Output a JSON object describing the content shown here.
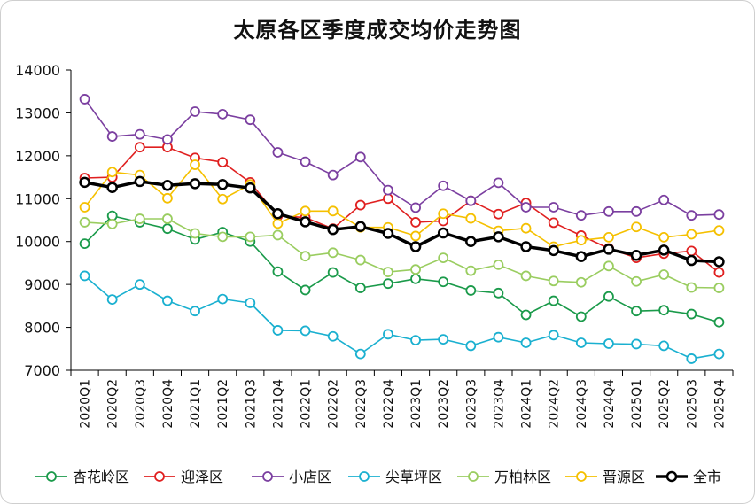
{
  "chart_data": {
    "type": "line",
    "title": "太原各区季度成交均价走势图",
    "xlabel": "",
    "ylabel": "",
    "ylim": [
      7000,
      14000
    ],
    "yticks": [
      7000,
      8000,
      9000,
      10000,
      11000,
      12000,
      13000,
      14000
    ],
    "grid": false,
    "legend_position": "bottom",
    "categories": [
      "2020Q1",
      "2020Q2",
      "2020Q3",
      "2020Q4",
      "2021Q1",
      "2021Q2",
      "2021Q3",
      "2021Q4",
      "2022Q1",
      "2022Q2",
      "2022Q3",
      "2022Q4",
      "2023Q1",
      "2023Q2",
      "2023Q3",
      "2023Q4",
      "2024Q1",
      "2024Q2",
      "2024Q3",
      "2024Q4",
      "2025Q1",
      "2025Q2",
      "2025Q3",
      "2025Q4"
    ],
    "series": [
      {
        "name": "杏花岭区",
        "color": "#1a9a4a",
        "values": [
          9950,
          10600,
          10450,
          10300,
          10050,
          10220,
          10000,
          9300,
          8870,
          9280,
          8920,
          9020,
          9130,
          9060,
          8860,
          8800,
          8290,
          8620,
          8250,
          8720,
          8380,
          8400,
          8310,
          8120
        ]
      },
      {
        "name": "迎泽区",
        "color": "#e02020",
        "values": [
          11480,
          11500,
          12200,
          12200,
          11950,
          11850,
          11380,
          10600,
          10560,
          10300,
          10850,
          11000,
          10450,
          10480,
          10950,
          10640,
          10900,
          10440,
          10140,
          9840,
          9620,
          9720,
          9780,
          9280
        ]
      },
      {
        "name": "小店区",
        "color": "#7b3fa0",
        "values": [
          13320,
          12450,
          12500,
          12380,
          13030,
          12970,
          12840,
          12080,
          11860,
          11550,
          11970,
          11200,
          10790,
          11300,
          10950,
          11370,
          10800,
          10800,
          10610,
          10700,
          10700,
          10970,
          10610,
          10630
        ]
      },
      {
        "name": "尖草坪区",
        "color": "#1ab0d0",
        "values": [
          9200,
          8650,
          9000,
          8620,
          8380,
          8660,
          8570,
          7930,
          7920,
          7790,
          7380,
          7840,
          7700,
          7720,
          7570,
          7770,
          7640,
          7820,
          7640,
          7620,
          7610,
          7570,
          7270,
          7380
        ]
      },
      {
        "name": "万柏林区",
        "color": "#9acd60",
        "values": [
          10450,
          10410,
          10530,
          10530,
          10190,
          10110,
          10110,
          10150,
          9660,
          9740,
          9570,
          9290,
          9350,
          9620,
          9320,
          9460,
          9200,
          9080,
          9050,
          9430,
          9070,
          9230,
          8930,
          8920
        ]
      },
      {
        "name": "晋源区",
        "color": "#f5c000",
        "values": [
          10800,
          11620,
          11550,
          11010,
          11790,
          10990,
          11330,
          10420,
          10710,
          10710,
          10330,
          10330,
          10130,
          10650,
          10540,
          10250,
          10310,
          9880,
          10030,
          10100,
          10340,
          10100,
          10170,
          10260
        ]
      },
      {
        "name": "全市",
        "color": "#000000",
        "values": [
          11380,
          11260,
          11400,
          11310,
          11350,
          11330,
          11250,
          10650,
          10460,
          10280,
          10350,
          10190,
          9880,
          10200,
          10000,
          10110,
          9880,
          9790,
          9650,
          9820,
          9680,
          9800,
          9560,
          9530
        ]
      }
    ]
  }
}
